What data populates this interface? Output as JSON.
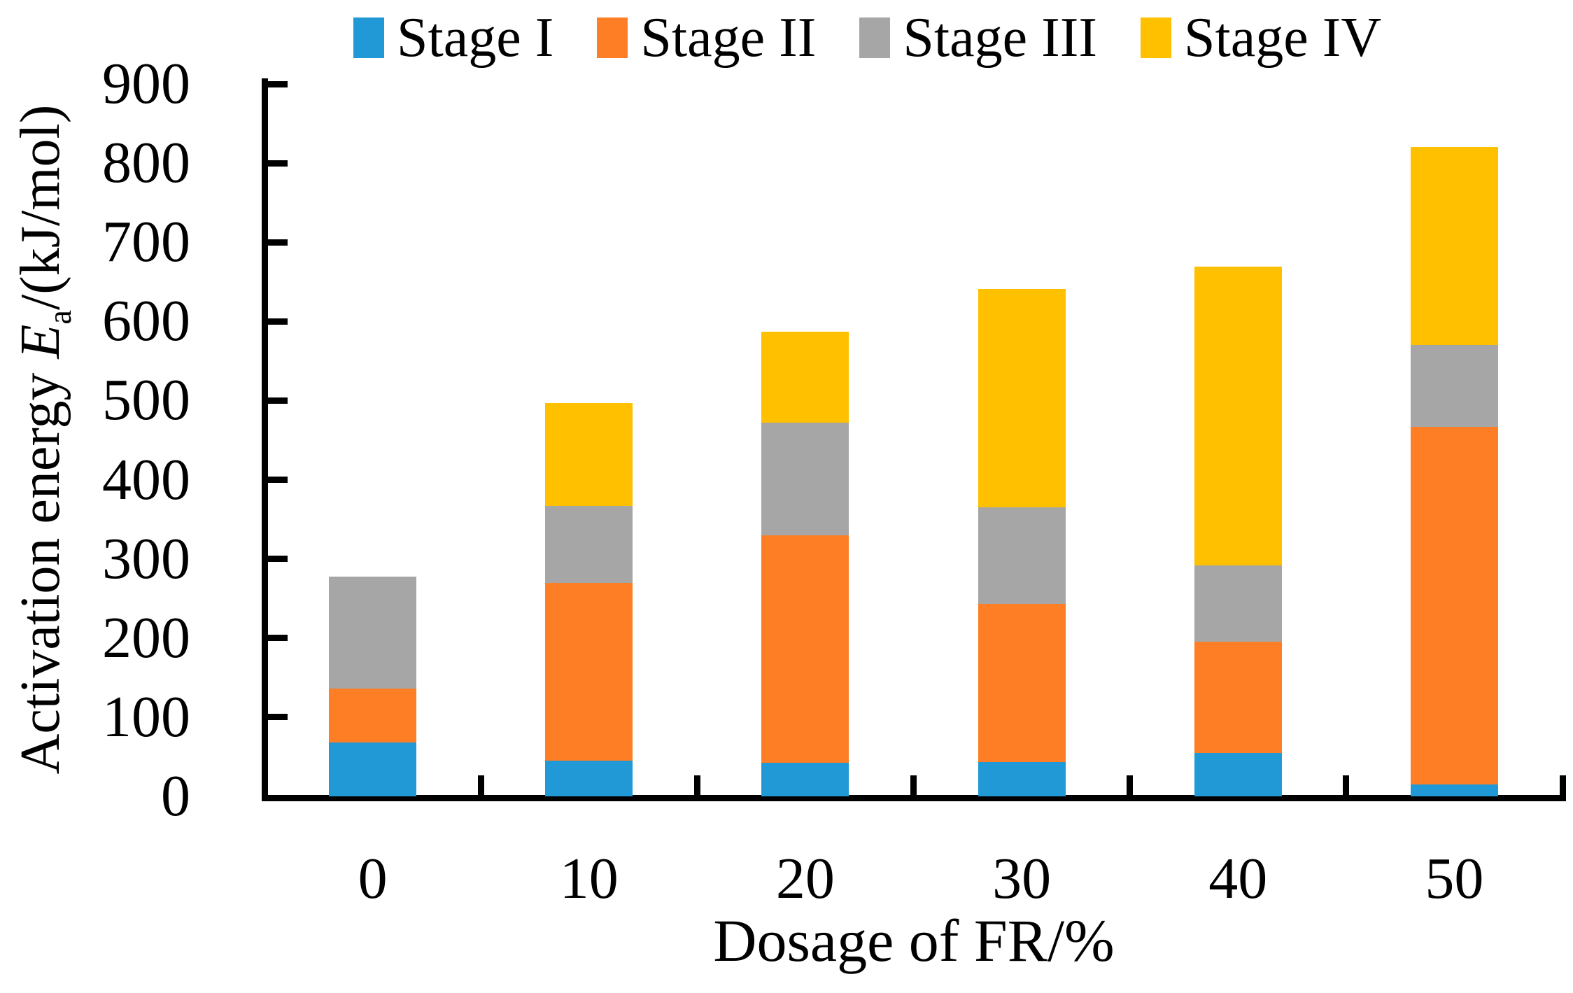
{
  "figure": {
    "background": "#ffffff",
    "axis_color": "#000000"
  },
  "legend": {
    "position": "top",
    "items": [
      {
        "label": "Stage I",
        "color": "#2099D6"
      },
      {
        "label": "Stage II",
        "color": "#FD7E25"
      },
      {
        "label": "Stage III",
        "color": "#A6A6A6"
      },
      {
        "label": "Stage IV",
        "color": "#FFC000"
      }
    ]
  },
  "chart_data": {
    "type": "bar",
    "stacked": true,
    "title": "",
    "xlabel": "Dosage of FR/%",
    "ylabel": "Activation energy Ea/(kJ/mol)",
    "ylabel_parts": {
      "prefix": "Activation energy ",
      "symbol": "E",
      "subscript": "a",
      "suffix": "/(kJ/mol)"
    },
    "categories": [
      "0",
      "10",
      "20",
      "30",
      "40",
      "50"
    ],
    "series": [
      {
        "name": "Stage I",
        "color": "#2099D6",
        "values": [
          68,
          45,
          42,
          43,
          55,
          15
        ]
      },
      {
        "name": "Stage II",
        "color": "#FD7E25",
        "values": [
          68,
          225,
          288,
          200,
          140,
          452
        ]
      },
      {
        "name": "Stage III",
        "color": "#A6A6A6",
        "values": [
          142,
          97,
          142,
          122,
          97,
          103
        ]
      },
      {
        "name": "Stage IV",
        "color": "#FFC000",
        "values": [
          0,
          130,
          115,
          276,
          377,
          250
        ]
      }
    ],
    "stack_totals": [
      278,
      497,
      587,
      641,
      669,
      820
    ],
    "ylim": [
      0,
      900
    ],
    "ytick_step": 100,
    "ytick_labels": [
      "0",
      "100",
      "200",
      "300",
      "400",
      "500",
      "600",
      "700",
      "800",
      "900"
    ],
    "grid": false,
    "legend_position": "top"
  }
}
